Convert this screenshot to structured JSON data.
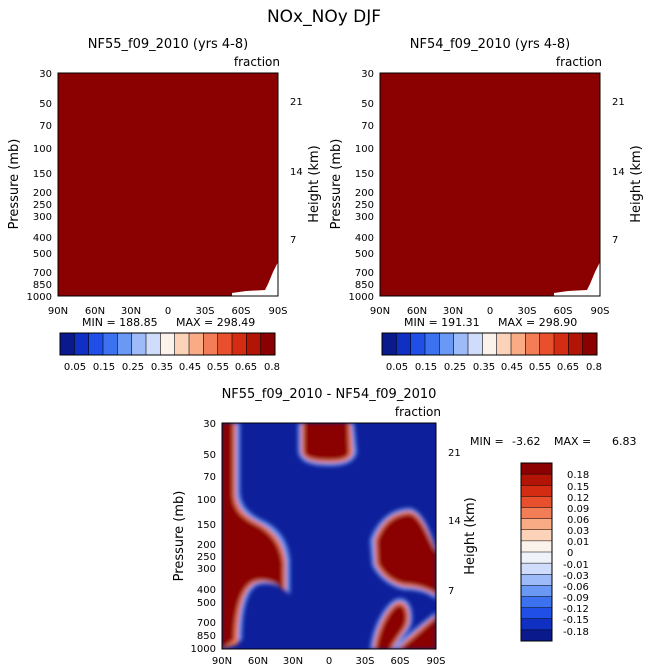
{
  "figure": {
    "title": "NOx_NOy DJF"
  },
  "colors": {
    "full_field": "#8b0000",
    "missing": "#ffffff",
    "diff_background": "#0d1f9a"
  },
  "chart_data": [
    {
      "type": "heatmap",
      "title": "NF55_f09_2010 (yrs 4-8)",
      "units": "fraction",
      "ylabel": "Pressure (mb)",
      "ylabel_right": "Height (km)",
      "x_ticks": [
        "90N",
        "60N",
        "30N",
        "0",
        "30S",
        "60S",
        "90S"
      ],
      "y_ticks": [
        "30",
        "50",
        "70",
        "100",
        "150",
        "200",
        "250",
        "300",
        "400",
        "500",
        "700",
        "850",
        "1000"
      ],
      "y_ticks_right": [
        "21",
        "14",
        "7"
      ],
      "xlim": [
        -90,
        90
      ],
      "ylim": [
        30,
        1000
      ],
      "y_scale": "log",
      "min_label": "MIN = 188.85",
      "max_label": "MAX = 298.49",
      "field_summary": "saturated at top colour (> 0.8) everywhere; missing data near surface south of 60S"
    },
    {
      "type": "heatmap",
      "title": "NF54_f09_2010 (yrs 4-8)",
      "units": "fraction",
      "ylabel": "Pressure (mb)",
      "ylabel_right": "Height (km)",
      "x_ticks": [
        "90N",
        "60N",
        "30N",
        "0",
        "30S",
        "60S",
        "90S"
      ],
      "y_ticks": [
        "30",
        "50",
        "70",
        "100",
        "150",
        "200",
        "250",
        "300",
        "400",
        "500",
        "700",
        "850",
        "1000"
      ],
      "y_ticks_right": [
        "21",
        "14",
        "7"
      ],
      "xlim": [
        -90,
        90
      ],
      "ylim": [
        30,
        1000
      ],
      "y_scale": "log",
      "min_label": "MIN = 191.31",
      "max_label": "MAX = 298.90",
      "field_summary": "saturated at top colour (> 0.8) everywhere; missing data near surface south of 60S"
    },
    {
      "type": "heatmap",
      "title": "NF55_f09_2010 - NF54_f09_2010",
      "units": "fraction",
      "ylabel": "Pressure (mb)",
      "ylabel_right": "Height (km)",
      "x_ticks": [
        "90N",
        "60N",
        "30N",
        "0",
        "30S",
        "60S",
        "90S"
      ],
      "y_ticks": [
        "30",
        "50",
        "70",
        "100",
        "150",
        "200",
        "250",
        "300",
        "400",
        "500",
        "700",
        "850",
        "1000"
      ],
      "y_ticks_right": [
        "21",
        "14",
        "7"
      ],
      "xlim": [
        -90,
        90
      ],
      "ylim": [
        30,
        1000
      ],
      "y_scale": "log",
      "min_label": "MIN =",
      "min_value": "-3.62",
      "max_label": "MAX =",
      "max_value": "6.83",
      "field_summary": "mostly below -0.18; positive (> 0.18) regions in NH polar column, tropical upper level near 30-50 mb, SH midlatitudes 150-350 mb, and near-surface patches"
    }
  ],
  "colorbar_horizontal": {
    "levels": [
      "0.05",
      "0.15",
      "0.25",
      "0.35",
      "0.45",
      "0.55",
      "0.65",
      "0.8"
    ],
    "colors": [
      "#0a1a8c",
      "#1030c4",
      "#1f4fe6",
      "#3c72f0",
      "#6a98f5",
      "#9dbbf8",
      "#cfdcfb",
      "#fbf2ec",
      "#fcd2b8",
      "#f9ab85",
      "#f27d56",
      "#e8502d",
      "#d42c12",
      "#b21505",
      "#8b0000"
    ]
  },
  "colorbar_vertical": {
    "levels": [
      "0.18",
      "0.15",
      "0.12",
      "0.09",
      "0.06",
      "0.03",
      "0.01",
      "0",
      "-0.01",
      "-0.03",
      "-0.06",
      "-0.09",
      "-0.12",
      "-0.15",
      "-0.18"
    ],
    "colors": [
      "#8b0000",
      "#b21505",
      "#d42c12",
      "#e8502d",
      "#f27d56",
      "#f9ab85",
      "#fcd2b8",
      "#fbf2ec",
      "#f0f2fa",
      "#cfdcfb",
      "#9dbbf8",
      "#6a98f5",
      "#3c72f0",
      "#1f4fe6",
      "#1030c4",
      "#0a1a8c"
    ]
  }
}
